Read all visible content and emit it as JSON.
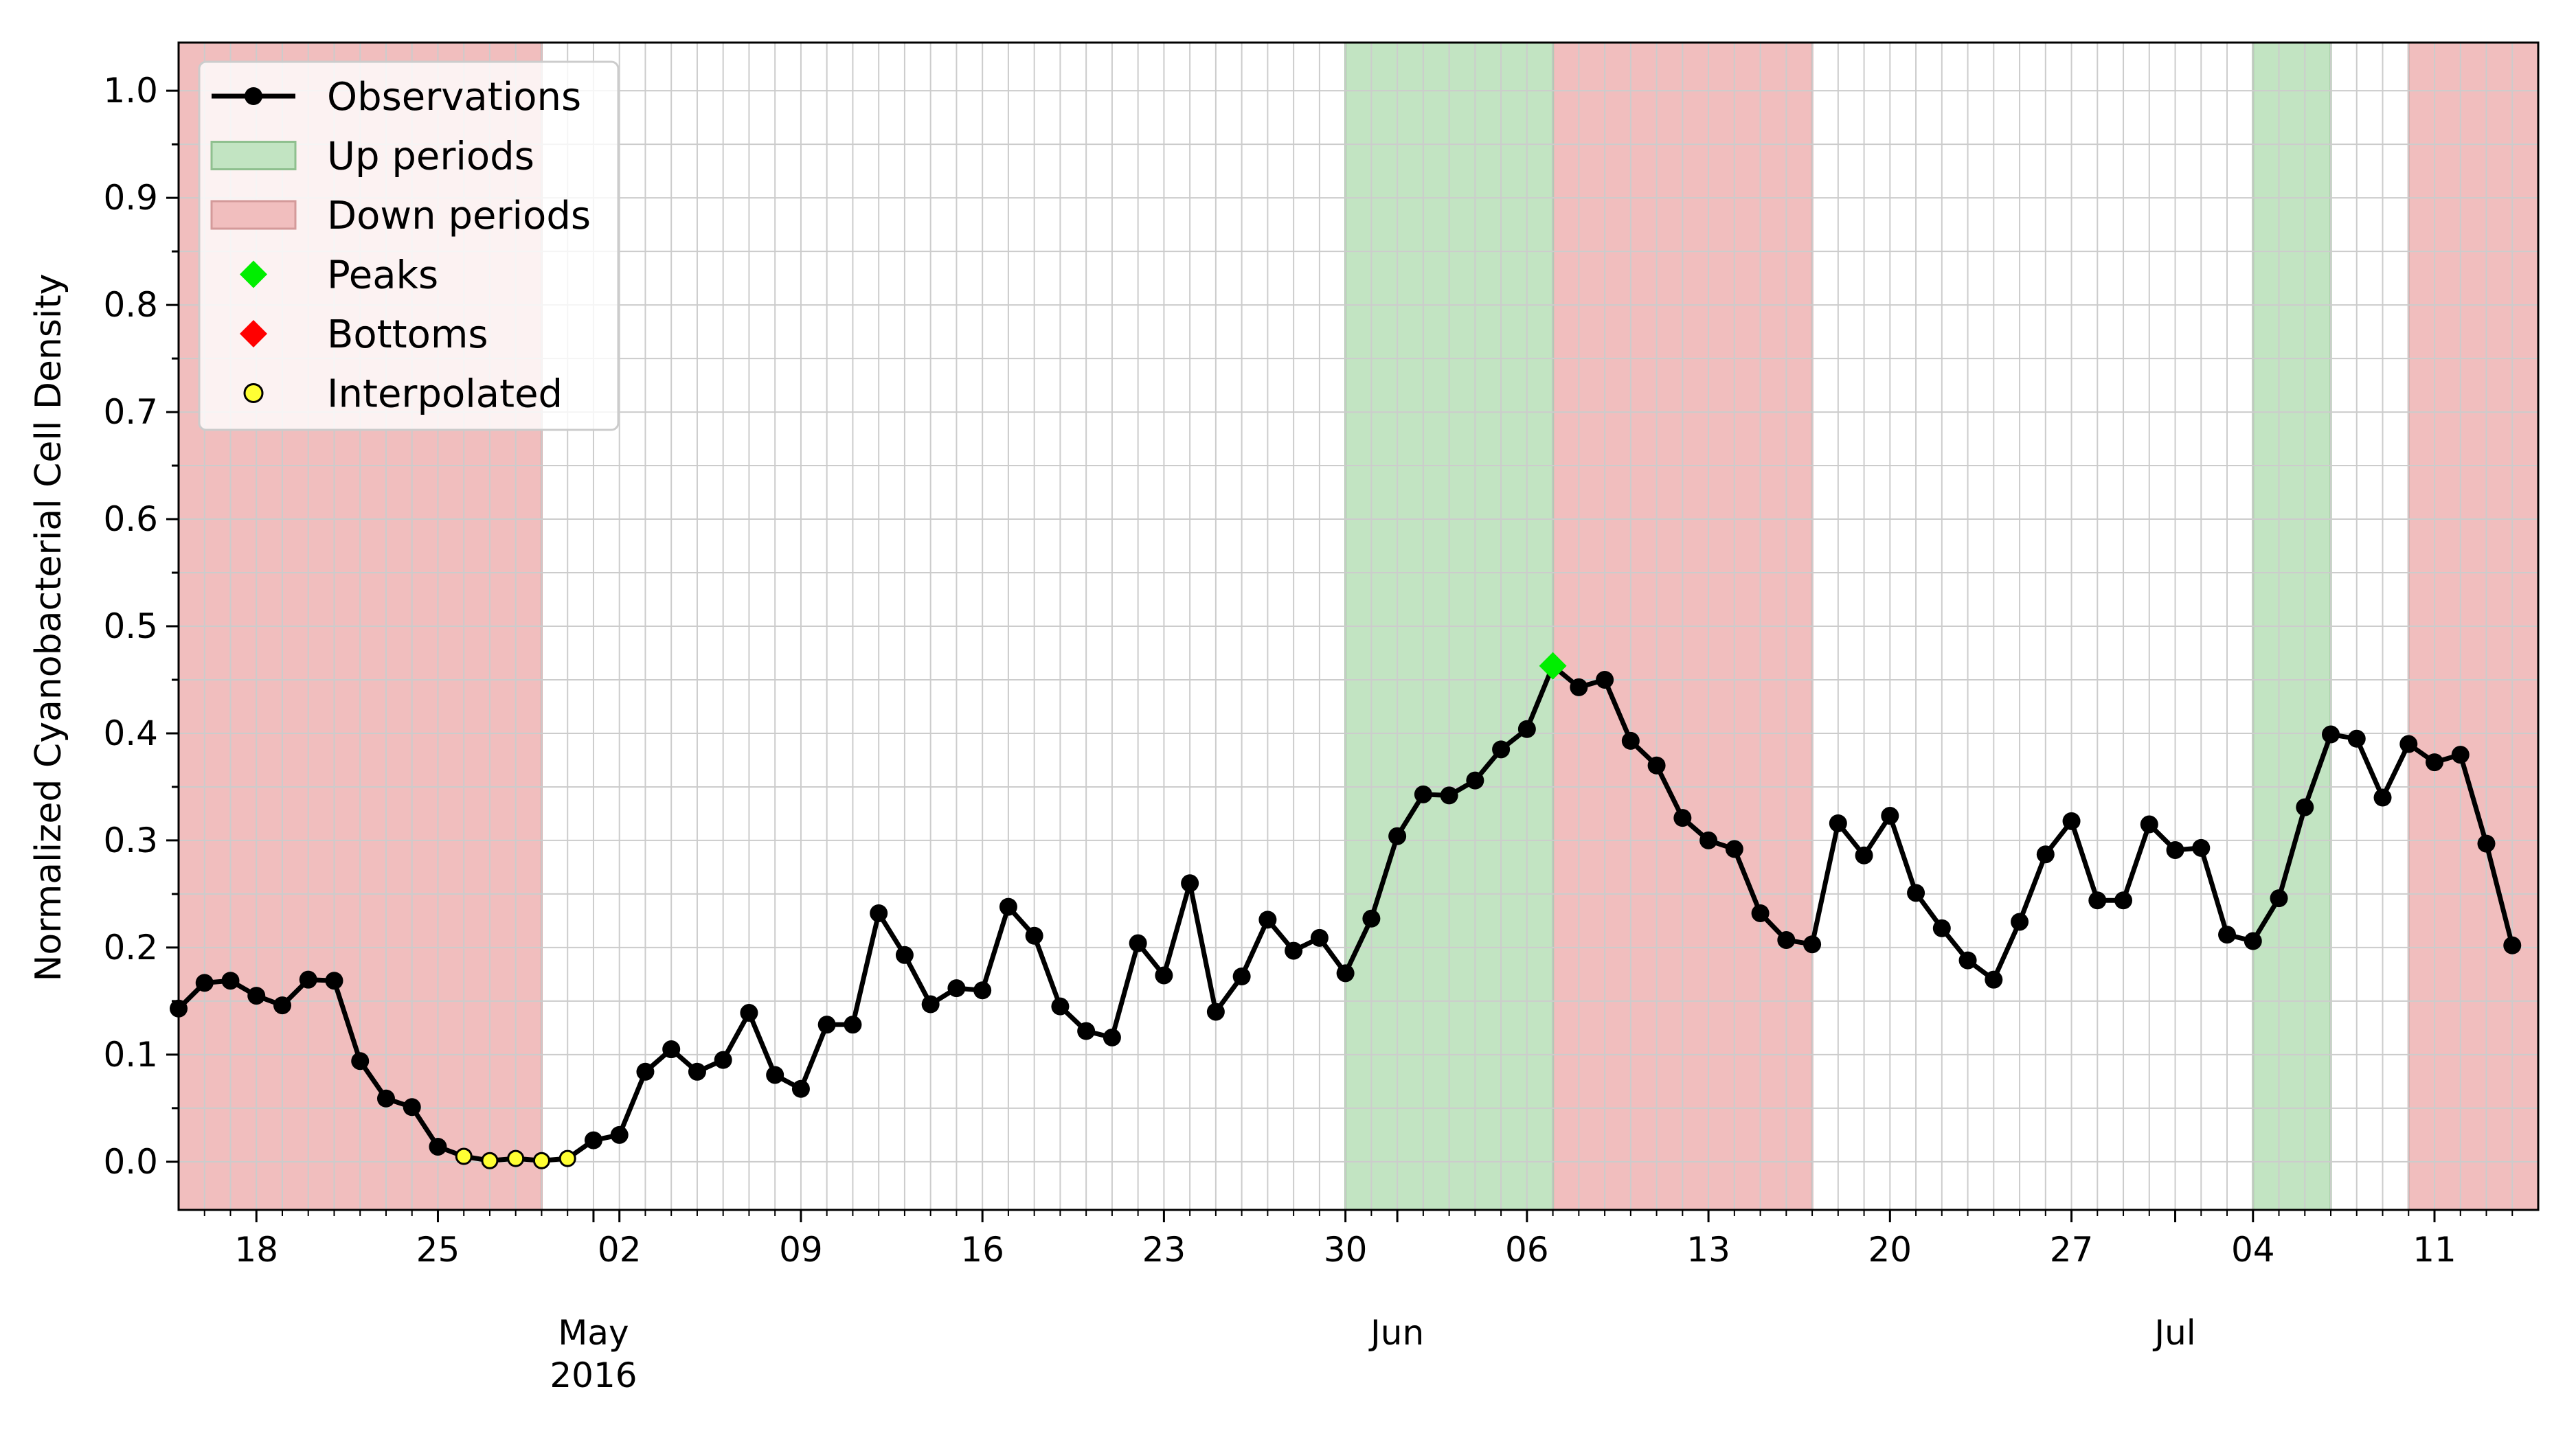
{
  "chart_data": {
    "type": "line",
    "ylabel": "Normalized Cyanobacterial Cell Density",
    "xlim": [
      "2016-04-15",
      "2016-07-15"
    ],
    "ylim": [
      -0.045,
      1.045
    ],
    "yticks": [
      "0.0",
      "0.1",
      "0.2",
      "0.3",
      "0.4",
      "0.5",
      "0.6",
      "0.7",
      "0.8",
      "0.9",
      "1.0"
    ],
    "grid": true,
    "legend_position": "top-left",
    "x_major_ticks": [
      {
        "date": "2016-04-18",
        "label": "18"
      },
      {
        "date": "2016-04-25",
        "label": "25"
      },
      {
        "date": "2016-05-02",
        "label": "02"
      },
      {
        "date": "2016-05-09",
        "label": "09"
      },
      {
        "date": "2016-05-16",
        "label": "16"
      },
      {
        "date": "2016-05-23",
        "label": "23"
      },
      {
        "date": "2016-05-30",
        "label": "30"
      },
      {
        "date": "2016-06-06",
        "label": "06"
      },
      {
        "date": "2016-06-13",
        "label": "13"
      },
      {
        "date": "2016-06-20",
        "label": "20"
      },
      {
        "date": "2016-06-27",
        "label": "27"
      },
      {
        "date": "2016-07-04",
        "label": "04"
      },
      {
        "date": "2016-07-11",
        "label": "11"
      }
    ],
    "month_labels": [
      {
        "date": "2016-05-01",
        "label": "May",
        "sublabel": "2016"
      },
      {
        "date": "2016-06-01",
        "label": "Jun",
        "sublabel": ""
      },
      {
        "date": "2016-07-01",
        "label": "Jul",
        "sublabel": ""
      }
    ],
    "legend": [
      {
        "key": "observations",
        "label": "Observations"
      },
      {
        "key": "up",
        "label": "Up periods"
      },
      {
        "key": "down",
        "label": "Down periods"
      },
      {
        "key": "peaks",
        "label": "Peaks"
      },
      {
        "key": "bottoms",
        "label": "Bottoms"
      },
      {
        "key": "interpolated",
        "label": "Interpolated"
      }
    ],
    "colors": {
      "line": "#000000",
      "up_fill": "#c2e4c2",
      "up_edge": "#8fc08f",
      "down_fill": "#f1bebe",
      "down_edge": "#d49a9a",
      "peak": "#00ee00",
      "bottom": "#ff0000",
      "interpolated": "#ffff33",
      "grid": "#cccccc"
    },
    "down_periods": [
      [
        "2016-04-15",
        "2016-04-29"
      ],
      [
        "2016-06-07",
        "2016-06-17"
      ],
      [
        "2016-07-10",
        "2016-07-15"
      ]
    ],
    "up_periods": [
      [
        "2016-05-30",
        "2016-06-07"
      ],
      [
        "2016-07-04",
        "2016-07-07"
      ]
    ],
    "peaks": [
      {
        "date": "2016-06-07",
        "y": 0.463
      }
    ],
    "bottoms": [],
    "start_date": "2016-04-15",
    "values": [
      0.143,
      0.167,
      0.169,
      0.155,
      0.146,
      0.17,
      0.169,
      0.094,
      0.059,
      0.051,
      0.014,
      0.005,
      0.001,
      0.003,
      0.001,
      0.003,
      0.02,
      0.025,
      0.084,
      0.105,
      0.084,
      0.095,
      0.139,
      0.081,
      0.068,
      0.128,
      0.128,
      0.232,
      0.193,
      0.147,
      0.162,
      0.16,
      0.238,
      0.211,
      0.145,
      0.122,
      0.116,
      0.204,
      0.174,
      0.26,
      0.14,
      0.173,
      0.226,
      0.197,
      0.209,
      0.176,
      0.227,
      0.304,
      0.343,
      0.342,
      0.356,
      0.385,
      0.404,
      0.463,
      0.443,
      0.45,
      0.393,
      0.37,
      0.321,
      0.3,
      0.292,
      0.232,
      0.207,
      0.203,
      0.316,
      0.286,
      0.323,
      0.251,
      0.218,
      0.188,
      0.17,
      0.224,
      0.287,
      0.318,
      0.244,
      0.244,
      0.315,
      0.291,
      0.293,
      0.212,
      0.206,
      0.246,
      0.331,
      0.399,
      0.395,
      0.34,
      0.39,
      0.373,
      0.38,
      0.297,
      0.202
    ],
    "interpolated_indices": [
      11,
      12,
      13,
      14,
      15
    ]
  }
}
